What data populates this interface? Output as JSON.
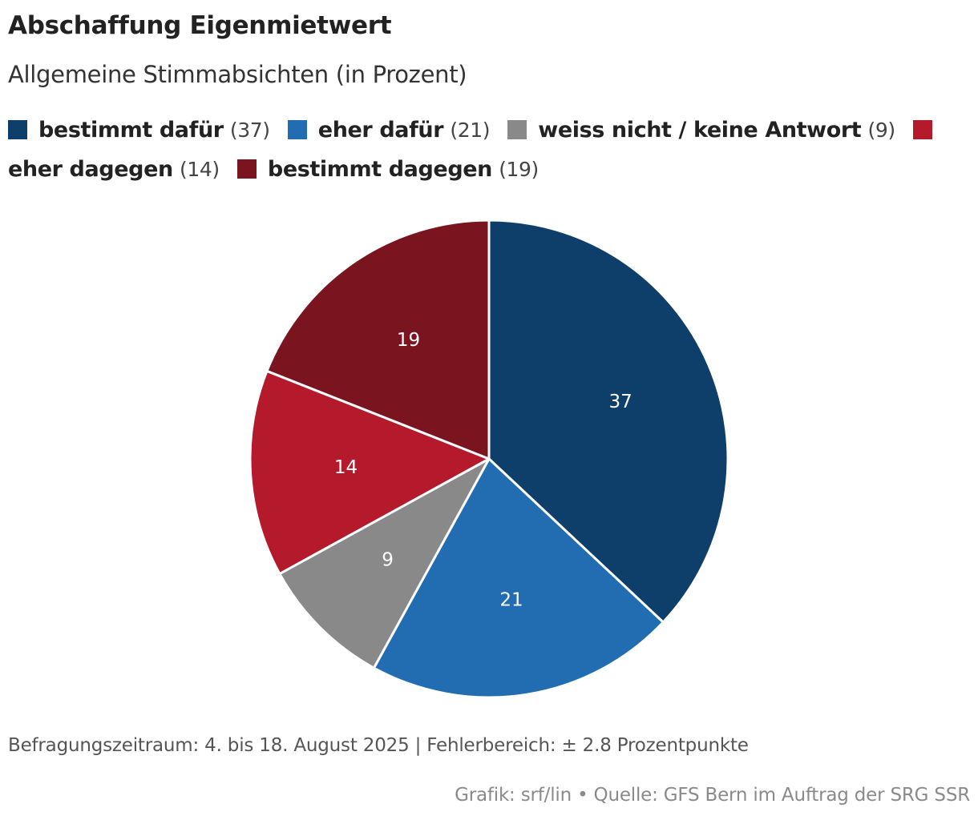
{
  "chart_data": {
    "type": "pie",
    "title": "Abschaffung Eigenmietwert",
    "subtitle": "Allgemeine Stimmabsichten (in Prozent)",
    "slices": [
      {
        "label": "bestimmt dafür",
        "value": 37,
        "color": "#0e3f6b"
      },
      {
        "label": "eher dafür",
        "value": 21,
        "color": "#226cb2"
      },
      {
        "label": "weiss nicht / keine Antwort",
        "value": 9,
        "color": "#898989"
      },
      {
        "label": "eher dagegen",
        "value": 14,
        "color": "#b51a2c"
      },
      {
        "label": "bestimmt dagegen",
        "value": 19,
        "color": "#7a1520"
      }
    ],
    "legend_position": "top",
    "start_angle": "12 o'clock",
    "direction": "clockwise"
  },
  "legend": [
    {
      "label": "bestimmt dafür",
      "value_text": "(37)"
    },
    {
      "label": "eher dafür",
      "value_text": "(21)"
    },
    {
      "label": "weiss nicht / keine Antwort",
      "value_text": "(9)"
    },
    {
      "label": "eher dagegen",
      "value_text": "(14)"
    },
    {
      "label": "bestimmt dagegen",
      "value_text": "(19)"
    }
  ],
  "footnote": "Befragungszeitraum: 4. bis 18. August 2025 | Fehlerbereich: ± 2.8 Prozentpunkte",
  "credits": "Grafik: srf/lin • Quelle: GFS Bern im Auftrag der SRG SSR"
}
